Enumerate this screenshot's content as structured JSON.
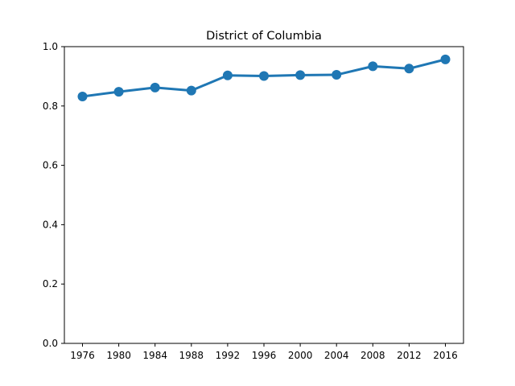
{
  "chart_data": {
    "type": "line",
    "title": "District of Columbia",
    "xlabel": "",
    "ylabel": "",
    "ylim": [
      0,
      1.0
    ],
    "yticks": [
      "0.0",
      "0.2",
      "0.4",
      "0.6",
      "0.8",
      "1.0"
    ],
    "categories": [
      "1976",
      "1980",
      "1984",
      "1988",
      "1992",
      "1996",
      "2000",
      "2004",
      "2008",
      "2012",
      "2016"
    ],
    "series": [
      {
        "values": [
          0.832,
          0.848,
          0.862,
          0.852,
          0.903,
          0.901,
          0.904,
          0.905,
          0.934,
          0.926,
          0.957
        ],
        "color": "#1f77b4"
      }
    ],
    "grid": false,
    "legend": "none"
  }
}
